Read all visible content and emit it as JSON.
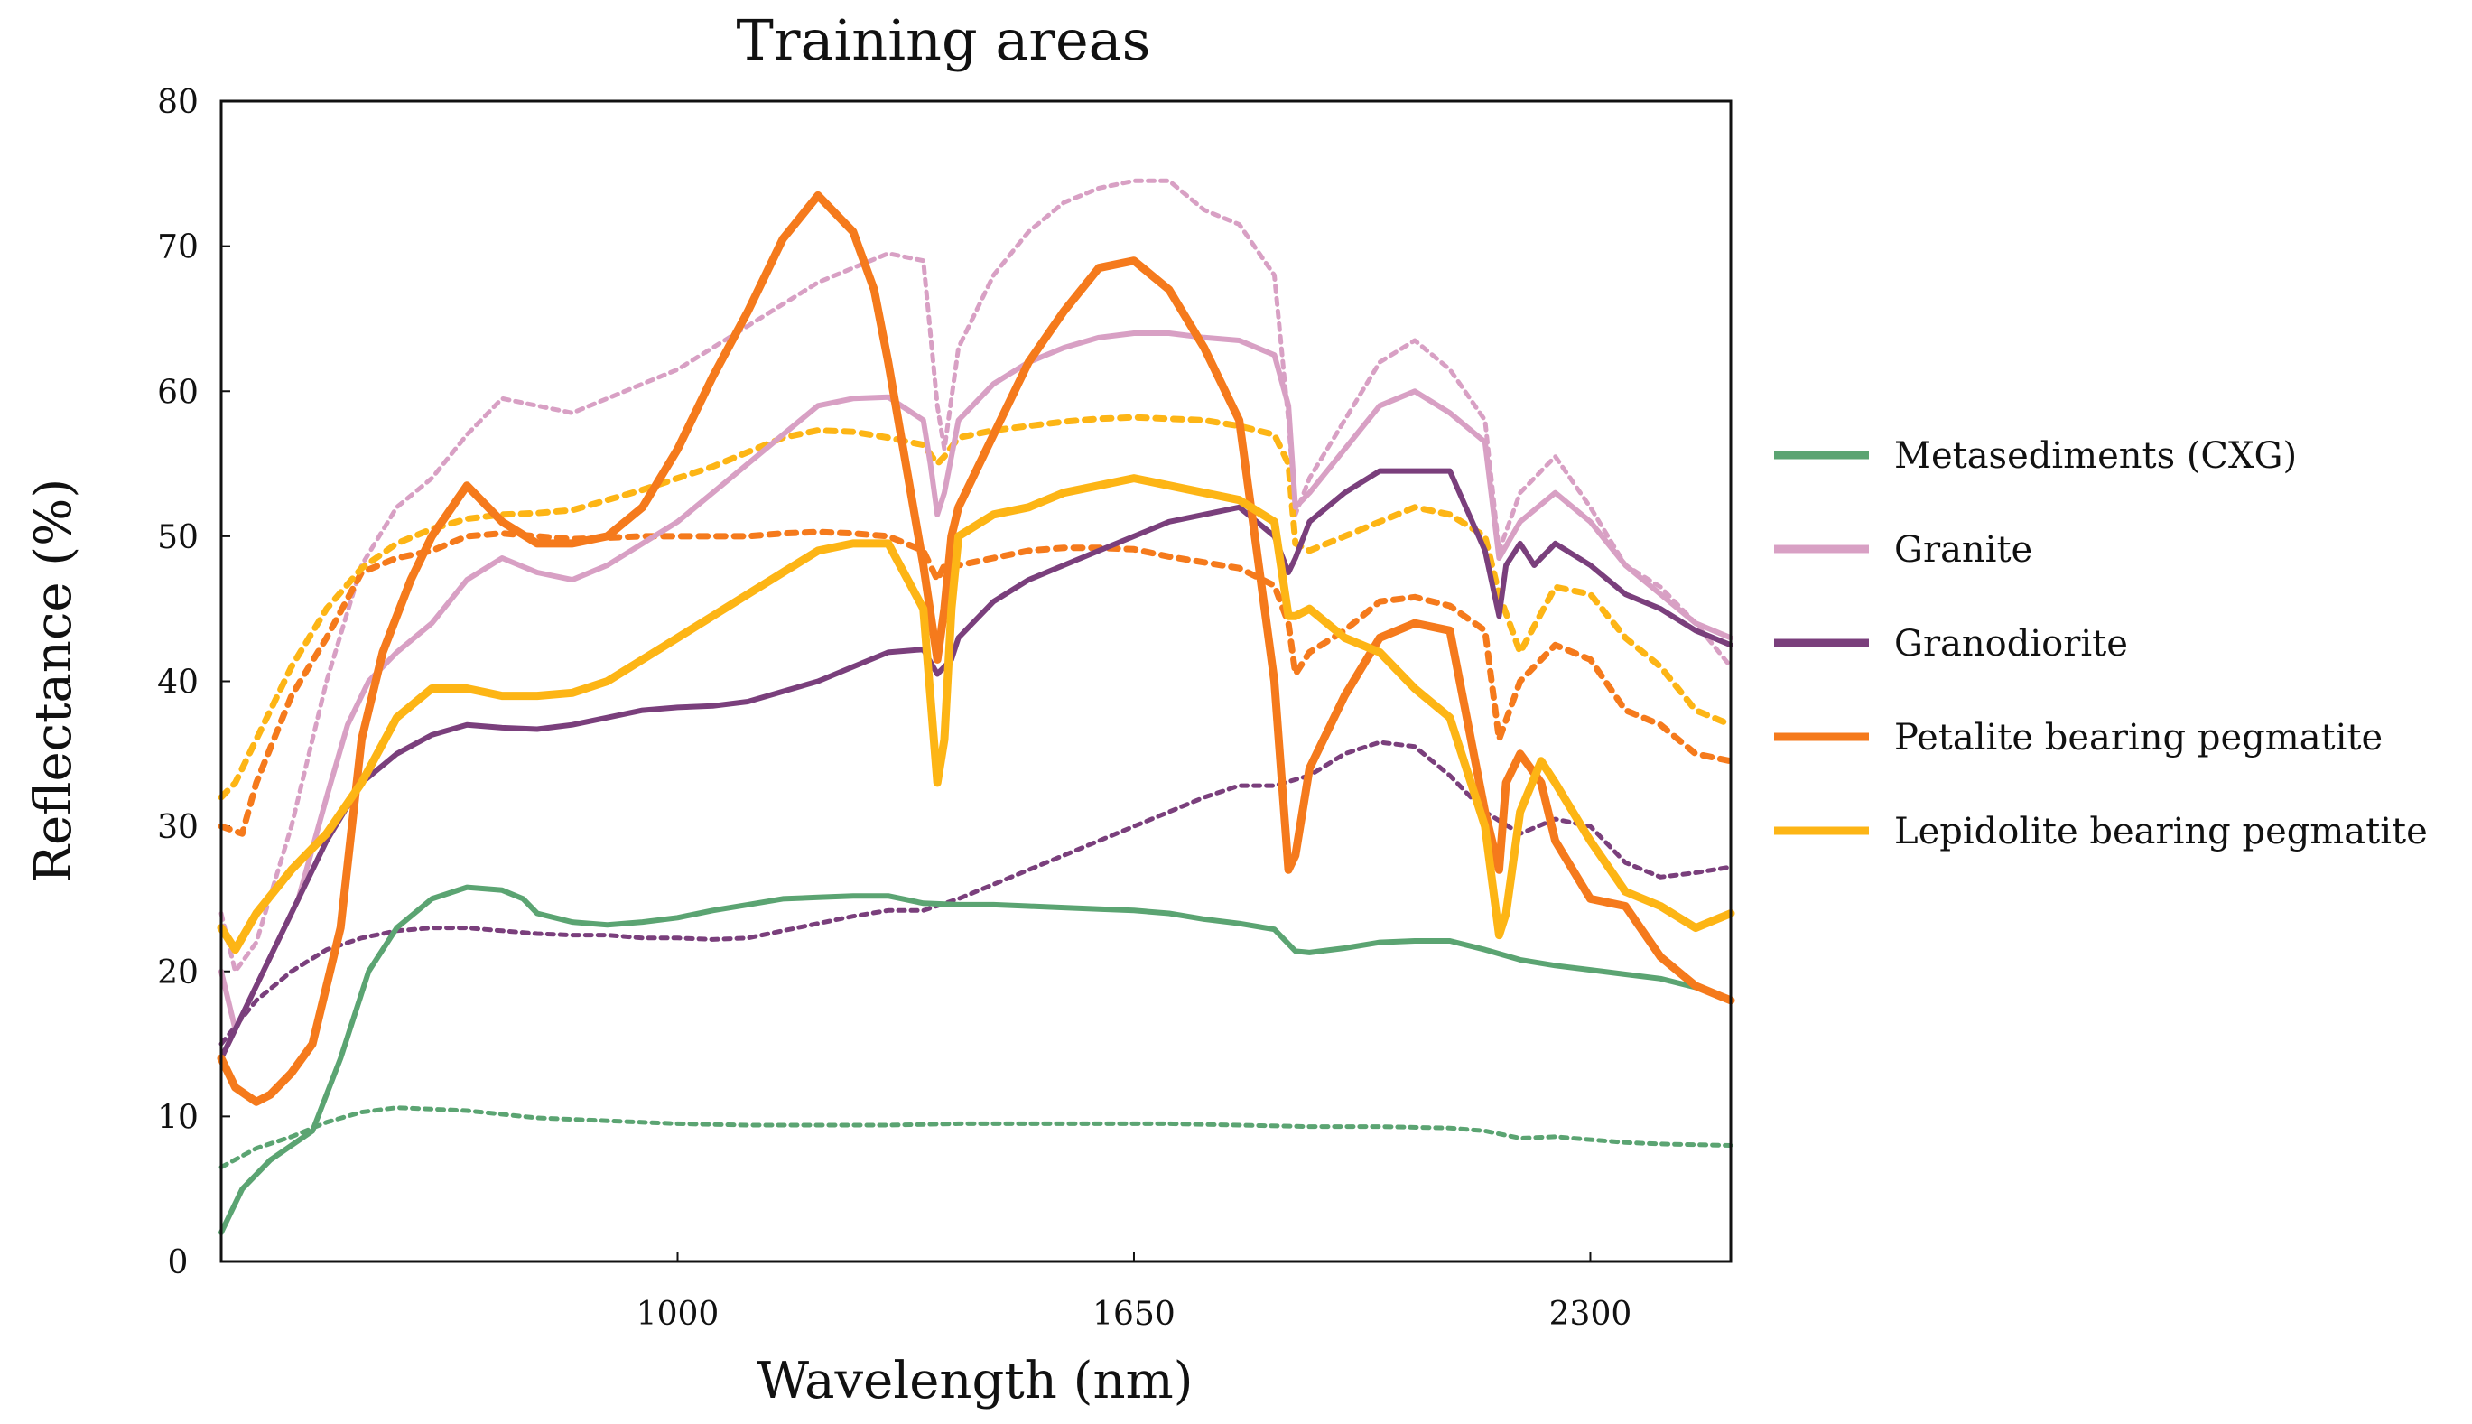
{
  "chart_data": {
    "type": "line",
    "title": "Training areas",
    "xlabel": "Wavelength (nm)",
    "ylabel": "Reflectance (%)",
    "xlim": [
      350,
      2500
    ],
    "ylim": [
      0,
      80
    ],
    "xticks": [
      1000,
      1650,
      2300
    ],
    "yticks": [
      0,
      10,
      20,
      30,
      40,
      50,
      60,
      70,
      80
    ],
    "grid": false,
    "legend_position": "right",
    "legend": [
      {
        "label": "Metasediments (CXG)",
        "color": "#5ba472"
      },
      {
        "label": "Granite",
        "color": "#d8a0c4"
      },
      {
        "label": "Granodiorite",
        "color": "#7a3f7c"
      },
      {
        "label": "Petalite bearing pegmatite",
        "color": "#f57a1c"
      },
      {
        "label": "Lepidolite bearing pegmatite",
        "color": "#fdb515"
      }
    ],
    "series": [
      {
        "name": "Metasediments (CXG)",
        "style": "solid",
        "color": "#5ba472",
        "width": 6,
        "x": [
          350,
          380,
          420,
          480,
          520,
          560,
          600,
          650,
          700,
          750,
          780,
          800,
          850,
          900,
          950,
          1000,
          1050,
          1100,
          1150,
          1200,
          1250,
          1300,
          1350,
          1400,
          1450,
          1500,
          1550,
          1600,
          1650,
          1700,
          1750,
          1800,
          1850,
          1880,
          1900,
          1950,
          2000,
          2050,
          2100,
          2150,
          2200,
          2250,
          2300,
          2350,
          2400,
          2450,
          2500
        ],
        "y": [
          2,
          5,
          7,
          9,
          14,
          20,
          23,
          25,
          25.8,
          25.6,
          25,
          24,
          23.4,
          23.2,
          23.4,
          23.7,
          24.2,
          24.6,
          25,
          25.1,
          25.2,
          25.2,
          24.7,
          24.6,
          24.6,
          24.5,
          24.4,
          24.3,
          24.2,
          24,
          23.6,
          23.3,
          22.9,
          21.4,
          21.3,
          21.6,
          22,
          22.1,
          22.1,
          21.5,
          20.8,
          20.4,
          20.1,
          19.8,
          19.5,
          18.9,
          18
        ]
      },
      {
        "name": "Metasediments (CXG) dotted",
        "style": "dotted",
        "color": "#5ba472",
        "width": 5,
        "x": [
          350,
          400,
          450,
          500,
          550,
          600,
          650,
          700,
          800,
          900,
          1000,
          1100,
          1200,
          1300,
          1400,
          1500,
          1600,
          1700,
          1800,
          1900,
          2000,
          2100,
          2150,
          2200,
          2250,
          2300,
          2350,
          2400,
          2500
        ],
        "y": [
          6.5,
          7.8,
          8.6,
          9.6,
          10.3,
          10.6,
          10.5,
          10.4,
          9.9,
          9.7,
          9.5,
          9.4,
          9.4,
          9.4,
          9.5,
          9.5,
          9.5,
          9.5,
          9.4,
          9.3,
          9.3,
          9.2,
          9,
          8.5,
          8.6,
          8.4,
          8.2,
          8.1,
          8
        ]
      },
      {
        "name": "Granite",
        "style": "solid",
        "color": "#d8a0c4",
        "width": 6,
        "x": [
          350,
          370,
          400,
          430,
          460,
          500,
          530,
          560,
          600,
          650,
          700,
          750,
          800,
          850,
          900,
          950,
          1000,
          1050,
          1100,
          1150,
          1200,
          1250,
          1300,
          1350,
          1360,
          1370,
          1380,
          1400,
          1450,
          1500,
          1550,
          1600,
          1650,
          1700,
          1750,
          1800,
          1850,
          1870,
          1880,
          1900,
          1950,
          2000,
          2050,
          2100,
          2150,
          2170,
          2200,
          2250,
          2300,
          2350,
          2400,
          2450,
          2500
        ],
        "y": [
          20,
          16,
          19,
          22,
          25,
          32,
          37,
          40,
          42,
          44,
          47,
          48.5,
          47.5,
          47,
          48,
          49.5,
          51,
          53,
          55,
          57,
          59,
          59.5,
          59.6,
          58,
          55,
          51.5,
          53,
          58,
          60.5,
          62,
          63,
          63.7,
          64,
          64,
          63.7,
          63.5,
          62.5,
          59,
          52,
          53,
          56,
          59,
          60,
          58.5,
          56.5,
          48.5,
          51,
          53,
          51,
          48,
          46,
          44,
          43
        ]
      },
      {
        "name": "Granite dotted",
        "style": "dotted",
        "color": "#d8a0c4",
        "width": 5,
        "x": [
          350,
          370,
          400,
          450,
          500,
          550,
          600,
          650,
          700,
          750,
          800,
          850,
          900,
          950,
          1000,
          1050,
          1100,
          1150,
          1200,
          1250,
          1300,
          1350,
          1360,
          1370,
          1380,
          1400,
          1450,
          1500,
          1550,
          1600,
          1650,
          1700,
          1750,
          1800,
          1850,
          1870,
          1880,
          1900,
          1950,
          2000,
          2050,
          2100,
          2150,
          2170,
          2200,
          2250,
          2300,
          2350,
          2400,
          2450,
          2500
        ],
        "y": [
          24,
          20,
          22,
          30,
          40,
          48,
          52,
          54,
          57,
          59.5,
          59,
          58.5,
          59.5,
          60.5,
          61.5,
          63,
          64.5,
          66,
          67.5,
          68.5,
          69.5,
          69,
          64,
          59,
          56,
          63,
          68,
          71,
          73,
          74,
          74.5,
          74.5,
          72.5,
          71.5,
          68,
          58,
          51.5,
          54,
          58,
          62,
          63.5,
          61.5,
          58,
          49,
          53,
          55.5,
          52,
          48,
          46.5,
          44,
          41
        ]
      },
      {
        "name": "Granodiorite",
        "style": "solid",
        "color": "#7a3f7c",
        "width": 6,
        "x": [
          350,
          380,
          420,
          460,
          500,
          550,
          600,
          650,
          700,
          750,
          800,
          850,
          900,
          950,
          1000,
          1050,
          1100,
          1150,
          1200,
          1250,
          1300,
          1350,
          1370,
          1390,
          1400,
          1450,
          1500,
          1550,
          1600,
          1650,
          1700,
          1750,
          1800,
          1850,
          1870,
          1880,
          1900,
          1950,
          2000,
          2050,
          2100,
          2150,
          2170,
          2180,
          2200,
          2220,
          2250,
          2300,
          2350,
          2400,
          2450,
          2500
        ],
        "y": [
          14,
          17,
          21,
          25,
          29,
          33,
          35,
          36.3,
          37,
          36.8,
          36.7,
          37,
          37.5,
          38,
          38.2,
          38.3,
          38.6,
          39.3,
          40,
          41,
          42,
          42.2,
          40.5,
          41.5,
          43,
          45.5,
          47,
          48,
          49,
          50,
          51,
          51.5,
          52,
          50,
          47.5,
          48.5,
          51,
          53,
          54.5,
          54.5,
          54.5,
          49,
          44.5,
          48,
          49.5,
          48,
          49.5,
          48,
          46,
          45,
          43.5,
          42.5
        ]
      },
      {
        "name": "Granodiorite dotted",
        "style": "dotted",
        "color": "#7a3f7c",
        "width": 5,
        "x": [
          350,
          400,
          450,
          500,
          550,
          600,
          650,
          700,
          750,
          800,
          850,
          900,
          950,
          1000,
          1050,
          1100,
          1150,
          1200,
          1250,
          1300,
          1350,
          1400,
          1450,
          1500,
          1550,
          1600,
          1650,
          1700,
          1750,
          1800,
          1850,
          1900,
          1950,
          2000,
          2050,
          2100,
          2150,
          2200,
          2250,
          2300,
          2350,
          2400,
          2450,
          2500
        ],
        "y": [
          15,
          18,
          20,
          21.5,
          22.3,
          22.8,
          23,
          23,
          22.8,
          22.6,
          22.5,
          22.5,
          22.3,
          22.3,
          22.2,
          22.3,
          22.8,
          23.3,
          23.8,
          24.2,
          24.2,
          25,
          26,
          27,
          28,
          29,
          30,
          31,
          32,
          32.8,
          32.8,
          33.5,
          35,
          35.8,
          35.5,
          33.5,
          31,
          29.5,
          30.5,
          30,
          27.5,
          26.5,
          26.8,
          27.2
        ]
      },
      {
        "name": "Petalite bearing pegmatite",
        "style": "solid",
        "color": "#f57a1c",
        "width": 9,
        "x": [
          350,
          370,
          400,
          420,
          450,
          480,
          520,
          550,
          580,
          620,
          650,
          700,
          750,
          800,
          850,
          900,
          950,
          1000,
          1050,
          1100,
          1150,
          1200,
          1250,
          1280,
          1300,
          1350,
          1370,
          1380,
          1390,
          1400,
          1450,
          1500,
          1550,
          1600,
          1650,
          1700,
          1750,
          1800,
          1850,
          1870,
          1880,
          1890,
          1900,
          1950,
          2000,
          2050,
          2100,
          2150,
          2170,
          2180,
          2200,
          2230,
          2250,
          2300,
          2350,
          2400,
          2450,
          2500
        ],
        "y": [
          14,
          12,
          11,
          11.5,
          13,
          15,
          23,
          36,
          42,
          47,
          50,
          53.5,
          51,
          49.5,
          49.5,
          50,
          52,
          56,
          61,
          65.5,
          70.5,
          73.5,
          71,
          67,
          62,
          48,
          41.5,
          45,
          50,
          52,
          57,
          62,
          65.5,
          68.5,
          69,
          67,
          63,
          58,
          40,
          27,
          28,
          31,
          34,
          39,
          43,
          44,
          43.5,
          31,
          27,
          33,
          35,
          33,
          29,
          25,
          24.5,
          21,
          19,
          18
        ]
      },
      {
        "name": "Petalite bearing pegmatite dotted",
        "style": "dotted",
        "color": "#f57a1c",
        "width": 7,
        "x": [
          350,
          380,
          400,
          450,
          500,
          550,
          600,
          650,
          700,
          750,
          800,
          850,
          900,
          950,
          1000,
          1050,
          1100,
          1150,
          1200,
          1250,
          1300,
          1350,
          1370,
          1380,
          1400,
          1450,
          1500,
          1550,
          1600,
          1650,
          1700,
          1750,
          1800,
          1850,
          1870,
          1880,
          1900,
          1950,
          2000,
          2050,
          2100,
          2150,
          2170,
          2200,
          2250,
          2300,
          2350,
          2400,
          2450,
          2500
        ],
        "y": [
          30,
          29.5,
          33,
          39,
          43,
          47.5,
          48.5,
          49,
          50,
          50.2,
          50,
          49.8,
          49.9,
          50,
          50,
          50,
          50,
          50.2,
          50.3,
          50.2,
          50,
          49,
          47,
          48,
          48,
          48.5,
          49,
          49.2,
          49.2,
          49.1,
          48.6,
          48.2,
          47.8,
          46.6,
          44,
          40.5,
          42,
          43.5,
          45.5,
          45.8,
          45.2,
          43.5,
          36,
          40,
          42.5,
          41.5,
          38,
          37,
          35,
          34.5
        ]
      },
      {
        "name": "Lepidolite bearing pegmatite",
        "style": "solid",
        "color": "#fdb515",
        "width": 9,
        "x": [
          350,
          370,
          400,
          450,
          500,
          550,
          600,
          650,
          700,
          750,
          800,
          850,
          900,
          950,
          1000,
          1050,
          1100,
          1150,
          1200,
          1250,
          1300,
          1350,
          1370,
          1380,
          1390,
          1400,
          1450,
          1500,
          1550,
          1600,
          1650,
          1700,
          1750,
          1800,
          1850,
          1870,
          1880,
          1900,
          1950,
          2000,
          2050,
          2100,
          2150,
          2170,
          2180,
          2200,
          2230,
          2250,
          2300,
          2350,
          2400,
          2450,
          2500
        ],
        "y": [
          23,
          21.5,
          24,
          27,
          29.5,
          33,
          37.5,
          39.5,
          39.5,
          39,
          39,
          39.2,
          40,
          41.5,
          43,
          44.5,
          46,
          47.5,
          49,
          49.5,
          49.5,
          45,
          33,
          36,
          45,
          50,
          51.5,
          52,
          53,
          53.5,
          54,
          53.5,
          53,
          52.5,
          51,
          44.5,
          44.5,
          45,
          43,
          42,
          39.5,
          37.5,
          30,
          22.5,
          24,
          31,
          34.5,
          33,
          29,
          25.5,
          24.5,
          23,
          24
        ]
      },
      {
        "name": "Lepidolite bearing pegmatite dotted",
        "style": "dotted",
        "color": "#fdb515",
        "width": 7,
        "x": [
          350,
          370,
          400,
          450,
          500,
          550,
          600,
          650,
          700,
          750,
          800,
          850,
          900,
          950,
          1000,
          1050,
          1100,
          1150,
          1200,
          1250,
          1300,
          1350,
          1370,
          1380,
          1400,
          1450,
          1500,
          1550,
          1600,
          1650,
          1700,
          1750,
          1800,
          1850,
          1870,
          1880,
          1900,
          1950,
          2000,
          2050,
          2100,
          2150,
          2170,
          2200,
          2250,
          2300,
          2350,
          2400,
          2450,
          2500
        ],
        "y": [
          32,
          33,
          36,
          41,
          45,
          47.8,
          49.5,
          50.5,
          51.2,
          51.5,
          51.6,
          51.8,
          52.5,
          53.2,
          54,
          54.8,
          55.8,
          56.8,
          57.3,
          57.2,
          56.8,
          56.3,
          55,
          55.5,
          56.8,
          57.3,
          57.6,
          57.9,
          58.1,
          58.2,
          58.1,
          58,
          57.6,
          57,
          55,
          49.5,
          49,
          50,
          51,
          52,
          51.5,
          50,
          46,
          42,
          46.5,
          46,
          43,
          41,
          38,
          37
        ]
      }
    ]
  }
}
